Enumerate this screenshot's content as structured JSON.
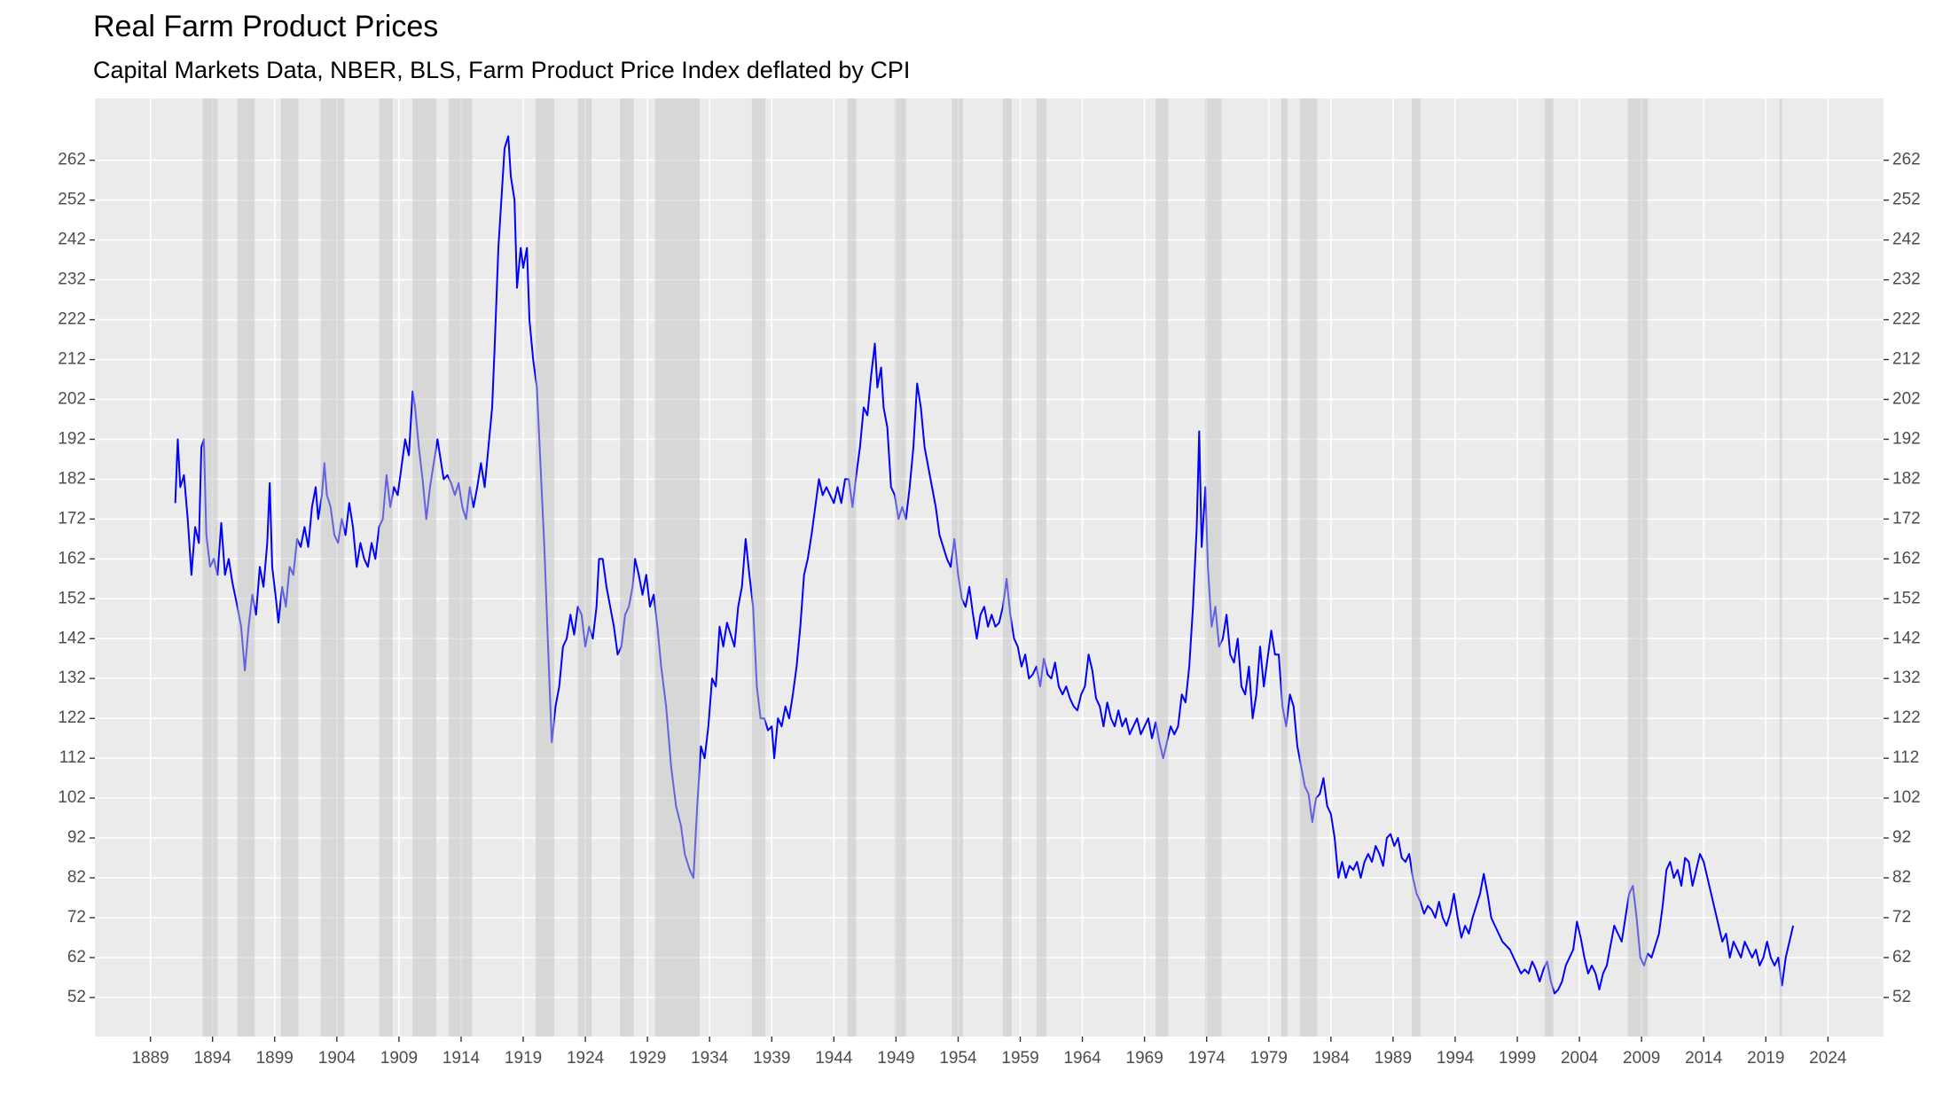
{
  "chart_data": {
    "type": "line",
    "title": "Real Farm Product Prices",
    "subtitle": "Capital Markets Data, NBER, BLS, Farm Product Price Index deflated by CPI",
    "color": "#0000ff",
    "grid": true,
    "secondary_axis": true,
    "xlim": [
      1884.53,
      2028.47
    ],
    "ylim": [
      42.2,
      277.5
    ],
    "xticks": [
      1889,
      1894,
      1899,
      1904,
      1909,
      1914,
      1919,
      1924,
      1929,
      1934,
      1939,
      1944,
      1949,
      1954,
      1959,
      1964,
      1969,
      1974,
      1979,
      1984,
      1989,
      1994,
      1999,
      2004,
      2009,
      2014,
      2019,
      2024
    ],
    "yticks": [
      52,
      62,
      72,
      82,
      92,
      102,
      112,
      122,
      132,
      142,
      152,
      162,
      172,
      182,
      192,
      202,
      212,
      222,
      232,
      242,
      252,
      262
    ],
    "recessions": [
      [
        1893.2,
        1894.4
      ],
      [
        1896.0,
        1897.4
      ],
      [
        1899.5,
        1900.9
      ],
      [
        1902.7,
        1904.6
      ],
      [
        1907.4,
        1908.5
      ],
      [
        1910.1,
        1912.0
      ],
      [
        1913.0,
        1914.9
      ],
      [
        1920.0,
        1921.5
      ],
      [
        1923.4,
        1924.5
      ],
      [
        1926.8,
        1927.9
      ],
      [
        1929.6,
        1933.2
      ],
      [
        1937.4,
        1938.5
      ],
      [
        1945.1,
        1945.8
      ],
      [
        1948.9,
        1949.8
      ],
      [
        1953.5,
        1954.4
      ],
      [
        1957.6,
        1958.3
      ],
      [
        1960.3,
        1961.1
      ],
      [
        1969.9,
        1970.9
      ],
      [
        1973.9,
        1975.2
      ],
      [
        1980.0,
        1980.5
      ],
      [
        1981.5,
        1982.9
      ],
      [
        1990.5,
        1991.2
      ],
      [
        2001.2,
        2001.9
      ],
      [
        2007.9,
        2009.5
      ],
      [
        2020.1,
        2020.3
      ]
    ],
    "x": [
      1891.0,
      1891.2,
      1891.4,
      1891.7,
      1892.0,
      1892.3,
      1892.6,
      1892.9,
      1893.1,
      1893.3,
      1893.5,
      1893.8,
      1894.1,
      1894.4,
      1894.7,
      1895.0,
      1895.3,
      1895.6,
      1896.0,
      1896.3,
      1896.6,
      1896.9,
      1897.2,
      1897.5,
      1897.8,
      1898.1,
      1898.4,
      1898.6,
      1898.8,
      1899.1,
      1899.3,
      1899.6,
      1899.9,
      1900.2,
      1900.5,
      1900.8,
      1901.1,
      1901.4,
      1901.7,
      1902.0,
      1902.3,
      1902.5,
      1902.8,
      1903.0,
      1903.2,
      1903.5,
      1903.8,
      1904.1,
      1904.4,
      1904.7,
      1905.0,
      1905.3,
      1905.6,
      1905.9,
      1906.2,
      1906.5,
      1906.8,
      1907.1,
      1907.4,
      1907.7,
      1908.0,
      1908.3,
      1908.6,
      1908.9,
      1909.2,
      1909.5,
      1909.8,
      1910.1,
      1910.3,
      1910.6,
      1910.9,
      1911.2,
      1911.5,
      1911.8,
      1912.1,
      1912.3,
      1912.6,
      1912.9,
      1913.2,
      1913.5,
      1913.8,
      1914.1,
      1914.4,
      1914.7,
      1915.0,
      1915.3,
      1915.6,
      1915.9,
      1916.2,
      1916.5,
      1916.7,
      1917.0,
      1917.3,
      1917.5,
      1917.8,
      1918.0,
      1918.3,
      1918.5,
      1918.8,
      1919.0,
      1919.3,
      1919.5,
      1919.8,
      1920.1,
      1920.4,
      1920.7,
      1921.0,
      1921.3,
      1921.6,
      1921.9,
      1922.2,
      1922.5,
      1922.8,
      1923.1,
      1923.4,
      1923.7,
      1924.0,
      1924.3,
      1924.6,
      1924.9,
      1925.1,
      1925.4,
      1925.7,
      1926.0,
      1926.3,
      1926.6,
      1926.9,
      1927.2,
      1927.5,
      1927.8,
      1928.0,
      1928.3,
      1928.6,
      1928.9,
      1929.2,
      1929.5,
      1929.8,
      1930.1,
      1930.5,
      1930.9,
      1931.3,
      1931.7,
      1932.0,
      1932.4,
      1932.7,
      1933.0,
      1933.3,
      1933.6,
      1933.9,
      1934.2,
      1934.5,
      1934.8,
      1935.1,
      1935.4,
      1935.7,
      1936.0,
      1936.3,
      1936.6,
      1936.9,
      1937.2,
      1937.5,
      1937.8,
      1938.1,
      1938.4,
      1938.7,
      1939.0,
      1939.2,
      1939.5,
      1939.8,
      1940.1,
      1940.4,
      1940.7,
      1941.0,
      1941.3,
      1941.6,
      1941.9,
      1942.2,
      1942.5,
      1942.8,
      1943.1,
      1943.4,
      1943.7,
      1944.0,
      1944.3,
      1944.6,
      1944.9,
      1945.2,
      1945.5,
      1945.8,
      1946.1,
      1946.4,
      1946.7,
      1947.0,
      1947.3,
      1947.5,
      1947.8,
      1948.0,
      1948.3,
      1948.6,
      1948.9,
      1949.2,
      1949.5,
      1949.8,
      1950.1,
      1950.4,
      1950.7,
      1951.0,
      1951.3,
      1951.6,
      1951.9,
      1952.2,
      1952.5,
      1952.8,
      1953.1,
      1953.4,
      1953.7,
      1954.0,
      1954.3,
      1954.6,
      1954.9,
      1955.2,
      1955.5,
      1955.8,
      1956.1,
      1956.4,
      1956.7,
      1957.0,
      1957.3,
      1957.6,
      1957.9,
      1958.2,
      1958.5,
      1958.8,
      1959.1,
      1959.4,
      1959.7,
      1960.0,
      1960.3,
      1960.6,
      1960.9,
      1961.2,
      1961.5,
      1961.8,
      1962.1,
      1962.4,
      1962.7,
      1963.0,
      1963.3,
      1963.6,
      1963.9,
      1964.2,
      1964.5,
      1964.8,
      1965.1,
      1965.4,
      1965.7,
      1966.0,
      1966.3,
      1966.6,
      1966.9,
      1967.2,
      1967.5,
      1967.8,
      1968.1,
      1968.4,
      1968.7,
      1969.0,
      1969.3,
      1969.6,
      1969.9,
      1970.2,
      1970.5,
      1970.8,
      1971.1,
      1971.4,
      1971.7,
      1972.0,
      1972.3,
      1972.6,
      1972.9,
      1973.2,
      1973.4,
      1973.6,
      1973.9,
      1974.1,
      1974.4,
      1974.7,
      1975.0,
      1975.3,
      1975.6,
      1975.9,
      1976.2,
      1976.5,
      1976.8,
      1977.1,
      1977.4,
      1977.7,
      1978.0,
      1978.3,
      1978.6,
      1978.9,
      1979.2,
      1979.5,
      1979.8,
      1980.1,
      1980.4,
      1980.7,
      1981.0,
      1981.3,
      1981.6,
      1981.9,
      1982.2,
      1982.5,
      1982.8,
      1983.1,
      1983.4,
      1983.7,
      1984.0,
      1984.3,
      1984.6,
      1984.9,
      1985.2,
      1985.5,
      1985.8,
      1986.1,
      1986.4,
      1986.7,
      1987.0,
      1987.3,
      1987.6,
      1987.9,
      1988.2,
      1988.5,
      1988.8,
      1989.1,
      1989.4,
      1989.7,
      1990.0,
      1990.3,
      1990.6,
      1990.9,
      1991.2,
      1991.5,
      1991.8,
      1992.1,
      1992.4,
      1992.7,
      1993.0,
      1993.3,
      1993.6,
      1993.9,
      1994.2,
      1994.5,
      1994.8,
      1995.1,
      1995.4,
      1995.7,
      1996.0,
      1996.3,
      1996.6,
      1996.9,
      1997.2,
      1997.5,
      1997.8,
      1998.1,
      1998.4,
      1998.7,
      1999.0,
      1999.3,
      1999.6,
      1999.9,
      2000.2,
      2000.5,
      2000.8,
      2001.1,
      2001.4,
      2001.7,
      2002.0,
      2002.3,
      2002.6,
      2002.9,
      2003.2,
      2003.5,
      2003.8,
      2004.1,
      2004.4,
      2004.7,
      2005.0,
      2005.3,
      2005.6,
      2005.9,
      2006.2,
      2006.5,
      2006.8,
      2007.1,
      2007.4,
      2007.7,
      2008.0,
      2008.3,
      2008.6,
      2008.9,
      2009.2,
      2009.5,
      2009.8,
      2010.1,
      2010.4,
      2010.7,
      2011.0,
      2011.3,
      2011.6,
      2011.9,
      2012.2,
      2012.5,
      2012.8,
      2013.1,
      2013.4,
      2013.7,
      2014.0,
      2014.3,
      2014.6,
      2014.9,
      2015.2,
      2015.5,
      2015.8,
      2016.1,
      2016.4,
      2016.7,
      2017.0,
      2017.3,
      2017.6,
      2017.9,
      2018.2,
      2018.5,
      2018.8,
      2019.1,
      2019.4,
      2019.7,
      2020.0,
      2020.3,
      2020.6,
      2020.9,
      2021.2
    ],
    "values": [
      176,
      192,
      180,
      183,
      172,
      158,
      170,
      166,
      190,
      192,
      168,
      160,
      162,
      158,
      171,
      158,
      162,
      156,
      150,
      145,
      134,
      145,
      153,
      148,
      160,
      155,
      166,
      181,
      160,
      152,
      146,
      155,
      150,
      160,
      158,
      167,
      165,
      170,
      165,
      175,
      180,
      172,
      178,
      186,
      178,
      175,
      168,
      166,
      172,
      168,
      176,
      170,
      160,
      166,
      162,
      160,
      166,
      162,
      170,
      172,
      183,
      175,
      180,
      178,
      185,
      192,
      188,
      204,
      200,
      190,
      182,
      172,
      180,
      186,
      192,
      188,
      182,
      183,
      181,
      178,
      181,
      175,
      172,
      180,
      175,
      180,
      186,
      180,
      190,
      200,
      215,
      240,
      255,
      265,
      268,
      258,
      252,
      230,
      240,
      235,
      240,
      222,
      212,
      205,
      185,
      165,
      140,
      116,
      125,
      130,
      140,
      142,
      148,
      143,
      150,
      148,
      140,
      145,
      142,
      150,
      162,
      162,
      155,
      150,
      145,
      138,
      140,
      148,
      150,
      155,
      162,
      158,
      153,
      158,
      150,
      153,
      145,
      135,
      125,
      110,
      100,
      95,
      88,
      84,
      82,
      100,
      115,
      112,
      120,
      132,
      130,
      145,
      140,
      146,
      143,
      140,
      150,
      155,
      167,
      158,
      150,
      130,
      122,
      122,
      119,
      120,
      112,
      122,
      120,
      125,
      122,
      128,
      135,
      145,
      158,
      162,
      168,
      175,
      182,
      178,
      180,
      178,
      176,
      180,
      176,
      182,
      182,
      175,
      183,
      190,
      200,
      198,
      208,
      216,
      205,
      210,
      200,
      195,
      180,
      178,
      172,
      175,
      172,
      180,
      190,
      206,
      200,
      190,
      185,
      180,
      175,
      168,
      165,
      162,
      160,
      167,
      158,
      152,
      150,
      155,
      148,
      142,
      148,
      150,
      145,
      148,
      145,
      146,
      150,
      157,
      148,
      142,
      140,
      135,
      138,
      132,
      133,
      135,
      130,
      137,
      133,
      132,
      136,
      130,
      128,
      130,
      127,
      125,
      124,
      128,
      130,
      138,
      134,
      127,
      125,
      120,
      126,
      122,
      120,
      124,
      120,
      122,
      118,
      120,
      122,
      118,
      120,
      122,
      117,
      121,
      116,
      112,
      116,
      120,
      118,
      120,
      128,
      126,
      135,
      150,
      170,
      194,
      165,
      180,
      160,
      145,
      150,
      140,
      142,
      148,
      138,
      136,
      142,
      130,
      128,
      135,
      122,
      128,
      140,
      130,
      137,
      144,
      138,
      138,
      125,
      120,
      128,
      125,
      115,
      110,
      105,
      103,
      96,
      102,
      103,
      107,
      100,
      98,
      92,
      82,
      86,
      82,
      85,
      84,
      86,
      82,
      86,
      88,
      86,
      90,
      88,
      85,
      92,
      93,
      90,
      92,
      87,
      86,
      88,
      82,
      78,
      76,
      73,
      75,
      74,
      72,
      76,
      72,
      70,
      73,
      78,
      72,
      67,
      70,
      68,
      72,
      75,
      78,
      83,
      78,
      72,
      70,
      68,
      66,
      65,
      64,
      62,
      60,
      58,
      59,
      58,
      61,
      59,
      56,
      59,
      61,
      56,
      53,
      54,
      56,
      60,
      62,
      64,
      71,
      67,
      62,
      58,
      60,
      58,
      54,
      58,
      60,
      65,
      70,
      68,
      66,
      72,
      78,
      80,
      72,
      62,
      60,
      63,
      62,
      65,
      68,
      75,
      84,
      86,
      82,
      84,
      80,
      87,
      86,
      80,
      84,
      88,
      86,
      82,
      78,
      74,
      70,
      66,
      68,
      62,
      66,
      64,
      62,
      66,
      64,
      62,
      64,
      60,
      62,
      66,
      62,
      60,
      62,
      55,
      62,
      66,
      70
    ]
  }
}
